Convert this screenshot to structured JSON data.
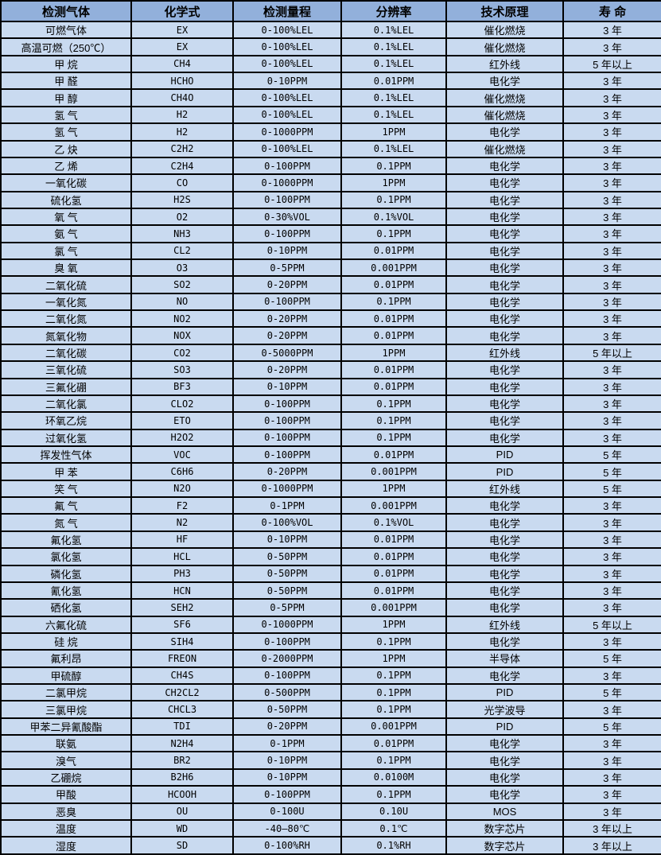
{
  "colors": {
    "header_bg": "#92b0db",
    "row_bg": "#c9daf0",
    "border": "#000000",
    "text": "#010101"
  },
  "table": {
    "headers": [
      "检测气体",
      "化学式",
      "检测量程",
      "分辨率",
      "技术原理",
      "寿 命"
    ],
    "rows": [
      [
        "可燃气体",
        "EX",
        "0-100%LEL",
        "0.1%LEL",
        "催化燃烧",
        "3 年"
      ],
      [
        "高温可燃（250℃）",
        "EX",
        "0-100%LEL",
        "0.1%LEL",
        "催化燃烧",
        "3 年"
      ],
      [
        "甲 烷",
        "CH4",
        "0-100%LEL",
        "0.1%LEL",
        "红外线",
        "5 年以上"
      ],
      [
        "甲 醛",
        "HCHO",
        "0-10PPM",
        "0.01PPM",
        "电化学",
        "3 年"
      ],
      [
        "甲 醇",
        "CH4O",
        "0-100%LEL",
        "0.1%LEL",
        "催化燃烧",
        "3 年"
      ],
      [
        "氢 气",
        "H2",
        "0-100%LEL",
        "0.1%LEL",
        "催化燃烧",
        "3 年"
      ],
      [
        "氢 气",
        "H2",
        "0-1000PPM",
        "1PPM",
        "电化学",
        "3 年"
      ],
      [
        "乙 炔",
        "C2H2",
        "0-100%LEL",
        "0.1%LEL",
        "催化燃烧",
        "3 年"
      ],
      [
        "乙 烯",
        "C2H4",
        "0-100PPM",
        "0.1PPM",
        "电化学",
        "3 年"
      ],
      [
        "一氧化碳",
        "CO",
        "0-1000PPM",
        "1PPM",
        "电化学",
        "3 年"
      ],
      [
        "硫化氢",
        "H2S",
        "0-100PPM",
        "0.1PPM",
        "电化学",
        "3 年"
      ],
      [
        "氧 气",
        "O2",
        "0-30%VOL",
        "0.1%VOL",
        "电化学",
        "3 年"
      ],
      [
        "氨 气",
        "NH3",
        "0-100PPM",
        "0.1PPM",
        "电化学",
        "3 年"
      ],
      [
        "氯 气",
        "CL2",
        "0-10PPM",
        "0.01PPM",
        "电化学",
        "3 年"
      ],
      [
        "臭 氧",
        "O3",
        "0-5PPM",
        "0.001PPM",
        "电化学",
        "3 年"
      ],
      [
        "二氧化硫",
        "SO2",
        "0-20PPM",
        "0.01PPM",
        "电化学",
        "3 年"
      ],
      [
        "一氧化氮",
        "NO",
        "0-100PPM",
        "0.1PPM",
        "电化学",
        "3 年"
      ],
      [
        "二氧化氮",
        "NO2",
        "0-20PPM",
        "0.01PPM",
        "电化学",
        "3 年"
      ],
      [
        "氮氧化物",
        "NOX",
        "0-20PPM",
        "0.01PPM",
        "电化学",
        "3 年"
      ],
      [
        "二氧化碳",
        "CO2",
        "0-5000PPM",
        "1PPM",
        "红外线",
        "5 年以上"
      ],
      [
        "三氧化硫",
        "SO3",
        "0-20PPM",
        "0.01PPM",
        "电化学",
        "3 年"
      ],
      [
        "三氟化硼",
        "BF3",
        "0-10PPM",
        "0.01PPM",
        "电化学",
        "3 年"
      ],
      [
        "二氧化氯",
        "CLO2",
        "0-100PPM",
        "0.1PPM",
        "电化学",
        "3 年"
      ],
      [
        "环氧乙烷",
        "ETO",
        "0-100PPM",
        "0.1PPM",
        "电化学",
        "3 年"
      ],
      [
        "过氧化氢",
        "H2O2",
        "0-100PPM",
        "0.1PPM",
        "电化学",
        "3 年"
      ],
      [
        "挥发性气体",
        "VOC",
        "0-100PPM",
        "0.01PPM",
        "PID",
        "5 年"
      ],
      [
        "甲 苯",
        "C6H6",
        "0-20PPM",
        "0.001PPM",
        "PID",
        "5 年"
      ],
      [
        "笑 气",
        "N2O",
        "0-1000PPM",
        "1PPM",
        "红外线",
        "5 年"
      ],
      [
        "氟 气",
        "F2",
        "0-1PPM",
        "0.001PPM",
        "电化学",
        "3 年"
      ],
      [
        "氮 气",
        "N2",
        "0-100%VOL",
        "0.1%VOL",
        "电化学",
        "3 年"
      ],
      [
        "氟化氢",
        "HF",
        "0-10PPM",
        "0.01PPM",
        "电化学",
        "3 年"
      ],
      [
        "氯化氢",
        "HCL",
        "0-50PPM",
        "0.01PPM",
        "电化学",
        "3 年"
      ],
      [
        "磷化氢",
        "PH3",
        "0-50PPM",
        "0.01PPM",
        "电化学",
        "3 年"
      ],
      [
        "氰化氢",
        "HCN",
        "0-50PPM",
        "0.01PPM",
        "电化学",
        "3 年"
      ],
      [
        "硒化氢",
        "SEH2",
        "0-5PPM",
        "0.001PPM",
        "电化学",
        "3 年"
      ],
      [
        "六氟化硫",
        "SF6",
        "0-1000PPM",
        "1PPM",
        "红外线",
        "5 年以上"
      ],
      [
        "硅 烷",
        "SIH4",
        "0-100PPM",
        "0.1PPM",
        "电化学",
        "3 年"
      ],
      [
        "氟利昂",
        "FREON",
        "0-2000PPM",
        "1PPM",
        "半导体",
        "5 年"
      ],
      [
        "甲硫醇",
        "CH4S",
        "0-100PPM",
        "0.1PPM",
        "电化学",
        "3 年"
      ],
      [
        "二氯甲烷",
        "CH2CL2",
        "0-500PPM",
        "0.1PPM",
        "PID",
        "5 年"
      ],
      [
        "三氯甲烷",
        "CHCL3",
        "0-50PPM",
        "0.1PPM",
        "光学波导",
        "3 年"
      ],
      [
        "甲苯二异氰酸酯",
        "TDI",
        "0-20PPM",
        "0.001PPM",
        "PID",
        "5 年"
      ],
      [
        "联氨",
        "N2H4",
        "0-1PPM",
        "0.01PPM",
        "电化学",
        "3 年"
      ],
      [
        "溴气",
        "BR2",
        "0-10PPM",
        "0.1PPM",
        "电化学",
        "3 年"
      ],
      [
        "乙硼烷",
        "B2H6",
        "0-10PPM",
        "0.0100M",
        "电化学",
        "3 年"
      ],
      [
        "甲酸",
        "HCOOH",
        "0-100PPM",
        "0.1PPM",
        "电化学",
        "3 年"
      ],
      [
        "恶臭",
        "OU",
        "0-100U",
        "0.10U",
        "MOS",
        "3 年"
      ],
      [
        "温度",
        "WD",
        "-40—80℃",
        "0.1℃",
        "数字芯片",
        "3 年以上"
      ],
      [
        "湿度",
        "SD",
        "0-100%RH",
        "0.1%RH",
        "数字芯片",
        "3 年以上"
      ]
    ]
  }
}
